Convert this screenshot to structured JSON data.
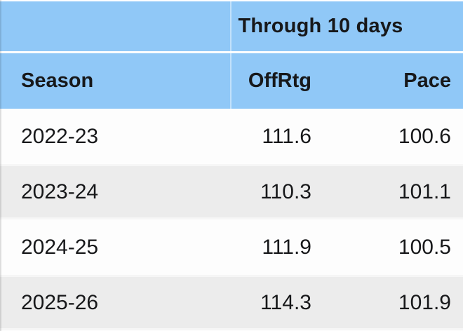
{
  "chart_data": {
    "type": "table",
    "title": "Through 10 days",
    "columns": [
      "Season",
      "OffRtg",
      "Pace"
    ],
    "rows": [
      [
        "2022-23",
        "111.6",
        "100.6"
      ],
      [
        "2023-24",
        "110.3",
        "101.1"
      ],
      [
        "2024-25",
        "111.9",
        "100.5"
      ],
      [
        "2025-26",
        "114.3",
        "101.9"
      ]
    ],
    "layout_hints": {
      "merged_header_spans": "OffRtg and Pace columns",
      "zebra_striping": true,
      "numeric_alignment": "right"
    }
  },
  "colors": {
    "header_blue": "#90c8f7",
    "row_white": "#fdfdfd",
    "row_alt": "#ececec",
    "text": "#17181a"
  }
}
